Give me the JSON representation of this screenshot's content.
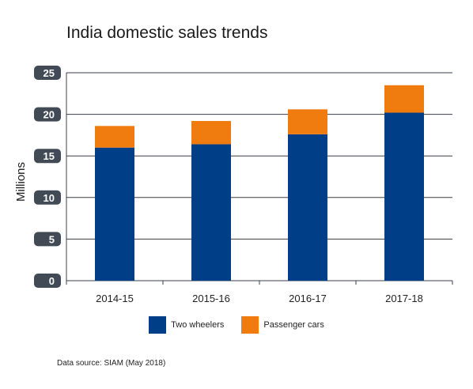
{
  "chart_data": {
    "type": "bar",
    "stacked": true,
    "title": "India domestic sales trends",
    "xlabel": "",
    "ylabel": "Millions",
    "ylim": [
      0,
      25
    ],
    "yticks": [
      0,
      5,
      10,
      15,
      20,
      25
    ],
    "grid": true,
    "legend_position": "bottom",
    "categories": [
      "2014-15",
      "2015-16",
      "2016-17",
      "2017-18"
    ],
    "series": [
      {
        "name": "Two wheelers",
        "color": "#003f87",
        "values": [
          16.0,
          16.4,
          17.6,
          20.2
        ]
      },
      {
        "name": "Passenger cars",
        "color": "#f07c10",
        "values": [
          2.6,
          2.8,
          3.0,
          3.3
        ]
      }
    ],
    "source": "Data source: SIAM (May 2018)"
  }
}
